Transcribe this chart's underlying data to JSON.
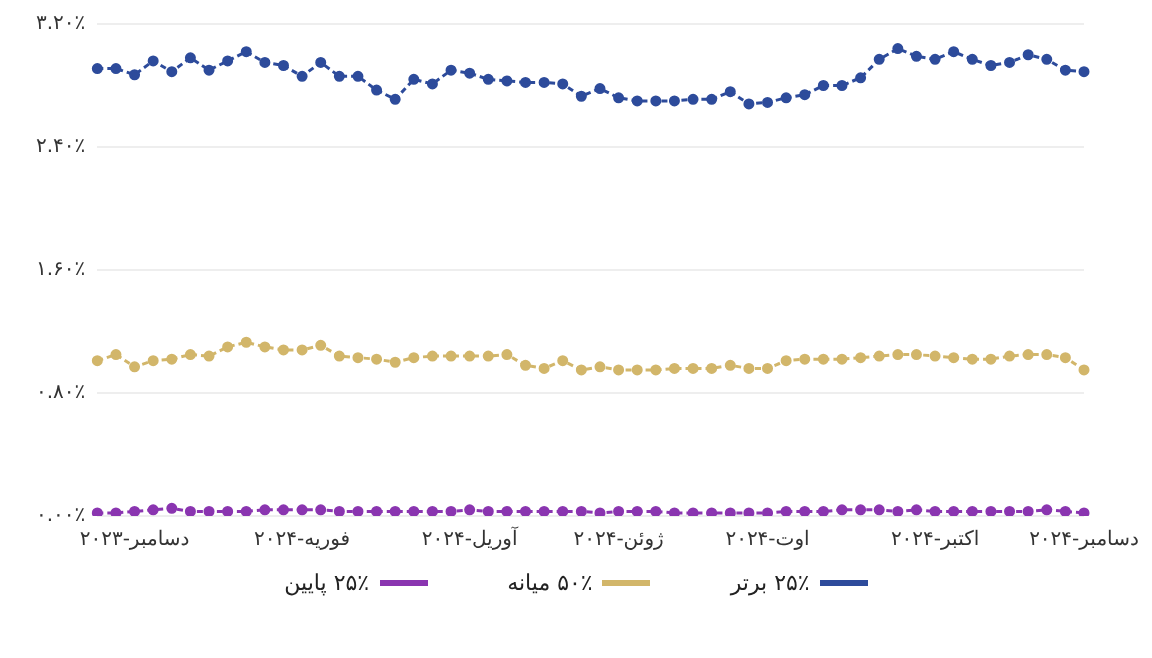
{
  "chart_data": {
    "type": "line",
    "categories": [
      null,
      null,
      "دسامبر-۲۰۲۳",
      null,
      null,
      null,
      null,
      null,
      null,
      null,
      null,
      "فوریه-۲۰۲۴",
      null,
      null,
      null,
      null,
      null,
      null,
      null,
      null,
      "آوریل-۲۰۲۴",
      null,
      null,
      null,
      null,
      null,
      null,
      null,
      "ژوئن-۲۰۲۴",
      null,
      null,
      null,
      null,
      null,
      null,
      null,
      "اوت-۲۰۲۴",
      null,
      null,
      null,
      null,
      null,
      null,
      null,
      null,
      "اکتبر-۲۰۲۴",
      null,
      null,
      null,
      null,
      null,
      null,
      null,
      "دسامبر-۲۰۲۴"
    ],
    "series": [
      {
        "name": "۲۵٪ برتر",
        "color": "#2d4b9b",
        "values": [
          2.91,
          2.91,
          2.87,
          2.96,
          2.89,
          2.98,
          2.9,
          2.96,
          3.02,
          2.95,
          2.93,
          2.86,
          2.95,
          2.86,
          2.86,
          2.77,
          2.71,
          2.84,
          2.81,
          2.9,
          2.88,
          2.84,
          2.83,
          2.82,
          2.82,
          2.81,
          2.73,
          2.78,
          2.72,
          2.7,
          2.7,
          2.7,
          2.71,
          2.71,
          2.76,
          2.68,
          2.69,
          2.72,
          2.74,
          2.8,
          2.8,
          2.85,
          2.97,
          3.04,
          2.99,
          2.97,
          3.02,
          2.97,
          2.93,
          2.95,
          3.0,
          2.97,
          2.9,
          2.89
        ]
      },
      {
        "name": "۵۰٪ میانه",
        "color": "#d2b66a",
        "values": [
          1.01,
          1.05,
          0.97,
          1.01,
          1.02,
          1.05,
          1.04,
          1.1,
          1.13,
          1.1,
          1.08,
          1.08,
          1.11,
          1.04,
          1.03,
          1.02,
          1.0,
          1.03,
          1.04,
          1.04,
          1.04,
          1.04,
          1.05,
          0.98,
          0.96,
          1.01,
          0.95,
          0.97,
          0.95,
          0.95,
          0.95,
          0.96,
          0.96,
          0.96,
          0.98,
          0.96,
          0.96,
          1.01,
          1.02,
          1.02,
          1.02,
          1.03,
          1.04,
          1.05,
          1.05,
          1.04,
          1.03,
          1.02,
          1.02,
          1.04,
          1.05,
          1.05,
          1.03,
          0.95
        ]
      },
      {
        "name": "۲۵٪ پایین",
        "color": "#8a35b0",
        "values": [
          0.02,
          0.02,
          0.03,
          0.04,
          0.05,
          0.03,
          0.03,
          0.03,
          0.03,
          0.04,
          0.04,
          0.04,
          0.04,
          0.03,
          0.03,
          0.03,
          0.03,
          0.03,
          0.03,
          0.03,
          0.04,
          0.03,
          0.03,
          0.03,
          0.03,
          0.03,
          0.03,
          0.02,
          0.03,
          0.03,
          0.03,
          0.02,
          0.02,
          0.02,
          0.02,
          0.02,
          0.02,
          0.03,
          0.03,
          0.03,
          0.04,
          0.04,
          0.04,
          0.03,
          0.04,
          0.03,
          0.03,
          0.03,
          0.03,
          0.03,
          0.03,
          0.04,
          0.03,
          0.02
        ]
      }
    ],
    "ylim": [
      0,
      3.2
    ],
    "yticks": [
      {
        "value": 0,
        "label": "۰.۰۰٪"
      },
      {
        "value": 0.8,
        "label": "۰.۸۰٪"
      },
      {
        "value": 1.6,
        "label": "۱.۶۰٪"
      },
      {
        "value": 2.4,
        "label": "۲.۴۰٪"
      },
      {
        "value": 3.2,
        "label": "۳.۲۰٪"
      }
    ],
    "grid": "y",
    "legend": "bottom",
    "marker": "circle",
    "line_style": "dashed"
  }
}
